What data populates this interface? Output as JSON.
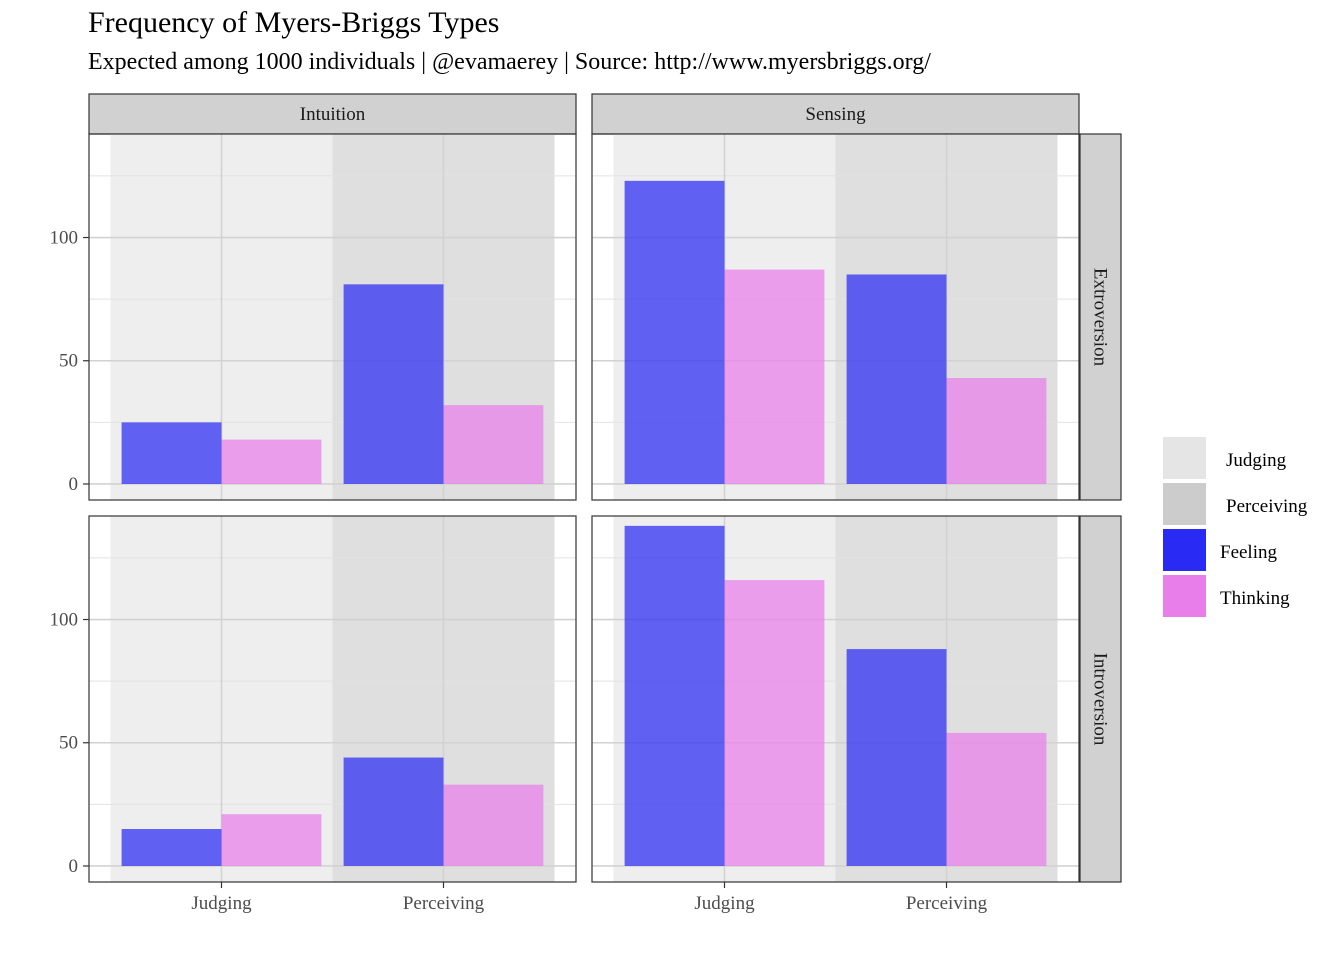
{
  "chart_data": {
    "type": "bar",
    "title": "Frequency of Myers-Briggs Types",
    "subtitle": "Expected among 1000 individuals | @evamaerey | Source: http://www.myersbriggs.org/",
    "xlabel": "",
    "ylabel": "",
    "categories": [
      "Judging",
      "Perceiving"
    ],
    "ylim": [
      -6.5,
      142
    ],
    "yticks": [
      0,
      50,
      100
    ],
    "grid": true,
    "facet_cols": [
      "Intuition",
      "Sensing"
    ],
    "facet_rows": [
      "Extroversion",
      "Introversion"
    ],
    "background_bands": [
      {
        "name": "Judging",
        "color": "#eeeeee"
      },
      {
        "name": "Perceiving",
        "color": "#dfdfdf"
      }
    ],
    "series": [
      {
        "name": "Feeling",
        "color": "#2a2af5"
      },
      {
        "name": "Thinking",
        "color": "#e77ee9"
      }
    ],
    "panels": [
      {
        "col": "Intuition",
        "row": "Extroversion",
        "Feeling": [
          25,
          81
        ],
        "Thinking": [
          18,
          32
        ]
      },
      {
        "col": "Sensing",
        "row": "Extroversion",
        "Feeling": [
          123,
          85
        ],
        "Thinking": [
          87,
          43
        ]
      },
      {
        "col": "Intuition",
        "row": "Introversion",
        "Feeling": [
          15,
          44
        ],
        "Thinking": [
          21,
          33
        ]
      },
      {
        "col": "Sensing",
        "row": "Introversion",
        "Feeling": [
          138,
          88
        ],
        "Thinking": [
          116,
          54
        ]
      }
    ],
    "legend": {
      "position": "right",
      "items": [
        {
          "label": "Judging",
          "color": "#e5e5e5"
        },
        {
          "label": "Perceiving",
          "color": "#cccccc"
        },
        {
          "label": "Feeling",
          "color": "#2a2af5"
        },
        {
          "label": "Thinking",
          "color": "#e77ee9"
        }
      ]
    }
  }
}
